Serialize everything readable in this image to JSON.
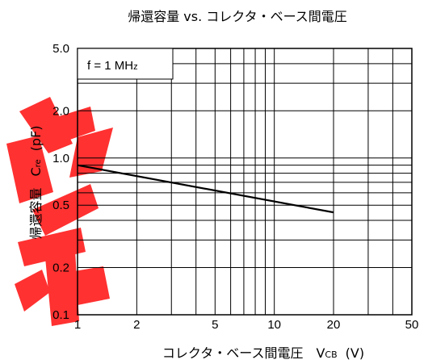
{
  "chart_data": {
    "type": "line",
    "title": "帰還容量 vs. コレクタ・ベース間電圧",
    "xlabel": "コレクタ・ベース間電圧",
    "xlabel_symbol_main": "V",
    "xlabel_symbol_sub": "CB",
    "xlabel_unit": "(V)",
    "ylabel": "帰還容量",
    "ylabel_symbol_main": "C",
    "ylabel_symbol_sub": "re",
    "ylabel_unit": "(pF)",
    "x_scale": "log",
    "y_scale": "log",
    "xlim": [
      1,
      50
    ],
    "ylim": [
      0.1,
      5.0
    ],
    "x_ticks": [
      {
        "value": 1,
        "label": "1"
      },
      {
        "value": 2,
        "label": "2"
      },
      {
        "value": 5,
        "label": "5"
      },
      {
        "value": 10,
        "label": "10"
      },
      {
        "value": 20,
        "label": "20"
      },
      {
        "value": 50,
        "label": "50"
      }
    ],
    "y_ticks": [
      {
        "value": 0.1,
        "label": "0.1"
      },
      {
        "value": 0.2,
        "label": "0.2"
      },
      {
        "value": 0.5,
        "label": "0.5"
      },
      {
        "value": 1.0,
        "label": "1.0"
      },
      {
        "value": 2.0,
        "label": "2.0"
      },
      {
        "value": 5.0,
        "label": "5.0"
      }
    ],
    "x_gridlines": [
      2,
      3,
      4,
      5,
      6,
      7,
      8,
      9,
      10,
      20,
      30,
      40
    ],
    "y_gridlines": [
      0.2,
      0.3,
      0.4,
      0.5,
      0.6,
      0.7,
      0.8,
      0.9,
      1.0,
      2.0,
      3.0,
      4.0
    ],
    "grid": true,
    "legend_box": {
      "text": "f = 1 MHz",
      "text_main": "f = 1 MH",
      "text_small": "z",
      "placement": "top-left"
    },
    "series": [
      {
        "x": [
          1,
          20
        ],
        "y": [
          0.9,
          0.45
        ]
      }
    ]
  },
  "watermark": {
    "text": "样",
    "color": "#ff1a1a"
  }
}
